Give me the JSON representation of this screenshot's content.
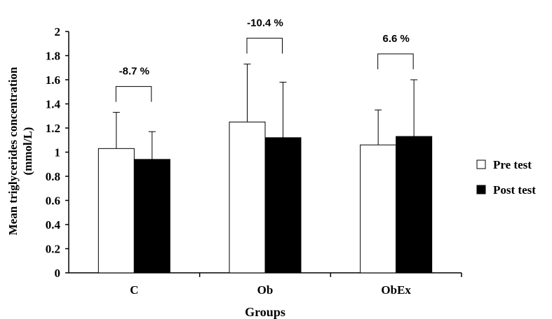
{
  "chart_data": {
    "type": "bar",
    "categories": [
      "C",
      "Ob",
      "ObEx"
    ],
    "series": [
      {
        "name": "Pre test",
        "values": [
          1.03,
          1.25,
          1.06
        ],
        "error": [
          0.3,
          0.48,
          0.29
        ],
        "color": "#ffffff"
      },
      {
        "name": "Post test",
        "values": [
          0.94,
          1.12,
          1.13
        ],
        "error": [
          0.23,
          0.46,
          0.47
        ],
        "color": "#000000"
      }
    ],
    "annotations": [
      "-8.7 %",
      "-10.4 %",
      "6.6 %"
    ],
    "xlabel": "Groups",
    "ylabel": "Mean triglycerides  concentration (mmol/L)",
    "ylabel_line1": "Mean triglycerides  concentration",
    "ylabel_line2": "(mmol/L)",
    "ylim": [
      0,
      2
    ],
    "yticks": [
      "0",
      "0.2",
      "0.4",
      "0.6",
      "0.8",
      "1",
      "1.2",
      "1.4",
      "1.6",
      "1.8",
      "2"
    ],
    "grid": false,
    "legend_position": "right"
  }
}
